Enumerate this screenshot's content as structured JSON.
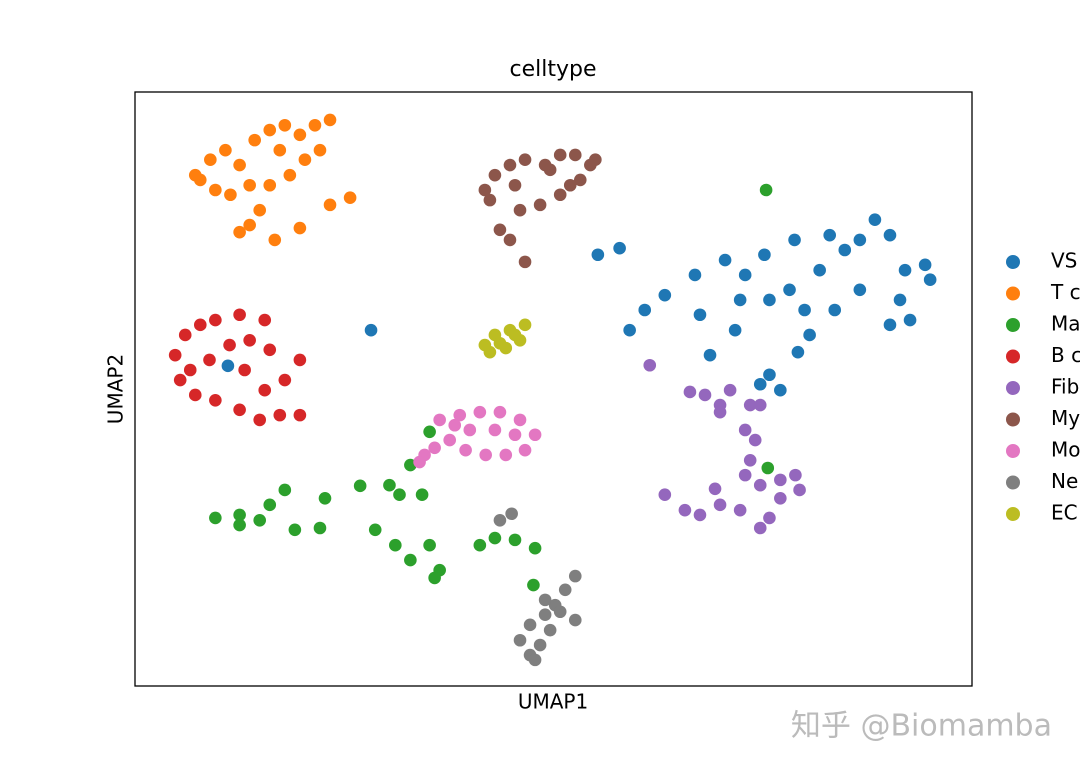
{
  "chart_data": {
    "type": "scatter",
    "title": "celltype",
    "x_label": "UMAP1",
    "y_label": "UMAP2",
    "xlim": [
      0,
      100
    ],
    "ylim": [
      0,
      100
    ],
    "grid": false,
    "legend": "right",
    "watermark": "知乎 @Biomamba",
    "series": [
      {
        "name": "VS",
        "color": "#1f77b4",
        "x": [
          11.1,
          28.2,
          55.3,
          57.9,
          59.1,
          60.9,
          63.3,
          66.9,
          67.5,
          70.5,
          72.3,
          75.2,
          75.8,
          78.2,
          78.8,
          80.0,
          80.6,
          81.8,
          83.0,
          84.8,
          86.6,
          88.4,
          90.2,
          92.0,
          94.4,
          95.0,
          91.4,
          90.2,
          92.6,
          86.6,
          83.6,
          68.7,
          75.8,
          77.1,
          79.2,
          74.7,
          71.7,
          72.9
        ],
        "y": [
          53.9,
          59.9,
          72.6,
          73.7,
          59.9,
          63.3,
          65.8,
          69.2,
          62.5,
          71.7,
          65.0,
          72.6,
          65.0,
          66.7,
          75.1,
          63.3,
          59.1,
          70.0,
          75.9,
          73.4,
          75.1,
          78.5,
          75.9,
          70.0,
          70.9,
          68.4,
          65.0,
          60.8,
          61.6,
          66.7,
          63.3,
          55.7,
          52.4,
          49.8,
          56.2,
          50.8,
          59.9,
          69.2
        ]
      },
      {
        "name": "T c",
        "color": "#ff7f0e",
        "x": [
          7.8,
          9.0,
          10.8,
          12.5,
          14.3,
          16.1,
          17.9,
          19.7,
          21.5,
          23.3,
          22.1,
          20.3,
          18.5,
          16.1,
          13.7,
          11.4,
          9.6,
          14.9,
          13.7,
          16.7,
          19.7,
          23.3,
          25.7,
          12.5,
          7.2,
          17.3
        ],
        "y": [
          85.2,
          88.6,
          90.2,
          87.7,
          91.9,
          93.6,
          94.4,
          92.8,
          94.4,
          95.3,
          90.2,
          88.6,
          86.0,
          84.3,
          84.3,
          82.7,
          83.5,
          80.1,
          77.6,
          75.1,
          77.1,
          81.0,
          82.2,
          76.4,
          86.0,
          90.2
        ]
      },
      {
        "name": "Ma",
        "color": "#2ca02c",
        "x": [
          75.4,
          35.2,
          32.9,
          9.6,
          12.5,
          14.9,
          16.1,
          17.9,
          19.1,
          22.7,
          22.1,
          26.9,
          30.4,
          31.6,
          28.7,
          31.1,
          32.9,
          35.2,
          36.4,
          35.8,
          34.3,
          41.2,
          43.0,
          45.4,
          47.8,
          47.6,
          75.6,
          12.5
        ],
        "y": [
          83.5,
          42.8,
          37.2,
          28.3,
          27.1,
          27.9,
          30.5,
          33.0,
          26.3,
          31.6,
          26.6,
          33.7,
          33.8,
          32.2,
          26.3,
          23.7,
          21.2,
          23.7,
          19.5,
          18.2,
          32.2,
          23.7,
          24.9,
          24.6,
          23.2,
          17.0,
          36.7,
          28.8
        ]
      },
      {
        "name": "B c",
        "color": "#d62728",
        "x": [
          4.8,
          6.0,
          7.8,
          9.6,
          12.5,
          15.5,
          13.7,
          11.3,
          8.9,
          5.4,
          7.2,
          9.6,
          12.5,
          14.9,
          17.3,
          19.7,
          19.7,
          17.9,
          15.5,
          13.1,
          16.1,
          6.6
        ],
        "y": [
          55.7,
          59.1,
          60.8,
          61.6,
          62.5,
          61.6,
          58.2,
          57.4,
          54.9,
          51.5,
          49.0,
          48.1,
          46.5,
          44.8,
          45.6,
          45.6,
          54.9,
          51.5,
          49.8,
          53.2,
          56.6,
          53.2
        ]
      },
      {
        "name": "Fib",
        "color": "#9467bd",
        "x": [
          61.5,
          66.3,
          68.1,
          69.9,
          71.1,
          73.5,
          74.7,
          72.9,
          74.1,
          73.5,
          72.9,
          74.7,
          77.1,
          78.9,
          79.4,
          77.1,
          75.8,
          74.7,
          72.3,
          69.9,
          67.5,
          65.7,
          63.3,
          69.3,
          69.9
        ],
        "y": [
          54.0,
          49.5,
          49.0,
          47.3,
          49.8,
          47.3,
          47.3,
          43.1,
          41.4,
          38.0,
          35.5,
          33.8,
          34.7,
          35.5,
          33.0,
          31.6,
          28.3,
          26.6,
          29.6,
          30.5,
          28.8,
          29.6,
          32.2,
          33.2,
          46.1
        ]
      },
      {
        "name": "My",
        "color": "#8c564b",
        "x": [
          41.8,
          43.0,
          44.8,
          46.6,
          49.0,
          50.8,
          52.6,
          54.4,
          53.2,
          50.8,
          48.4,
          46.0,
          43.6,
          44.8,
          46.6,
          42.4,
          49.6,
          52.0,
          55.0,
          45.4
        ],
        "y": [
          83.5,
          86.0,
          87.7,
          88.6,
          87.7,
          89.4,
          89.4,
          87.7,
          85.2,
          82.7,
          81.0,
          80.1,
          76.8,
          75.1,
          71.4,
          81.8,
          86.9,
          84.3,
          88.6,
          84.3
        ]
      },
      {
        "name": "Mo",
        "color": "#e377c2",
        "x": [
          36.4,
          38.8,
          41.2,
          43.6,
          46.0,
          47.8,
          46.6,
          44.3,
          41.9,
          39.5,
          37.6,
          40.0,
          43.0,
          45.4,
          34.6,
          34.0,
          35.8,
          38.2
        ],
        "y": [
          44.8,
          45.6,
          46.1,
          46.1,
          44.8,
          42.3,
          39.7,
          38.9,
          38.9,
          39.7,
          41.4,
          43.1,
          43.1,
          42.3,
          38.9,
          37.7,
          40.1,
          43.9
        ]
      },
      {
        "name": "Ne",
        "color": "#7f7f7f",
        "x": [
          43.6,
          45.0,
          52.6,
          51.4,
          50.2,
          49.0,
          47.2,
          46.0,
          47.2,
          48.4,
          49.6,
          52.6,
          50.8,
          47.8,
          49.0
        ],
        "y": [
          27.9,
          29.0,
          18.5,
          16.2,
          13.6,
          12.0,
          10.3,
          7.7,
          5.2,
          6.9,
          9.4,
          11.1,
          12.5,
          4.4,
          14.5
        ]
      },
      {
        "name": "EC",
        "color": "#bcbd22",
        "x": [
          41.8,
          43.0,
          44.8,
          46.6,
          46.0,
          44.3,
          42.4,
          43.6,
          45.4
        ],
        "y": [
          57.4,
          59.1,
          59.9,
          60.8,
          58.2,
          56.9,
          56.2,
          57.7,
          59.1
        ]
      }
    ]
  }
}
